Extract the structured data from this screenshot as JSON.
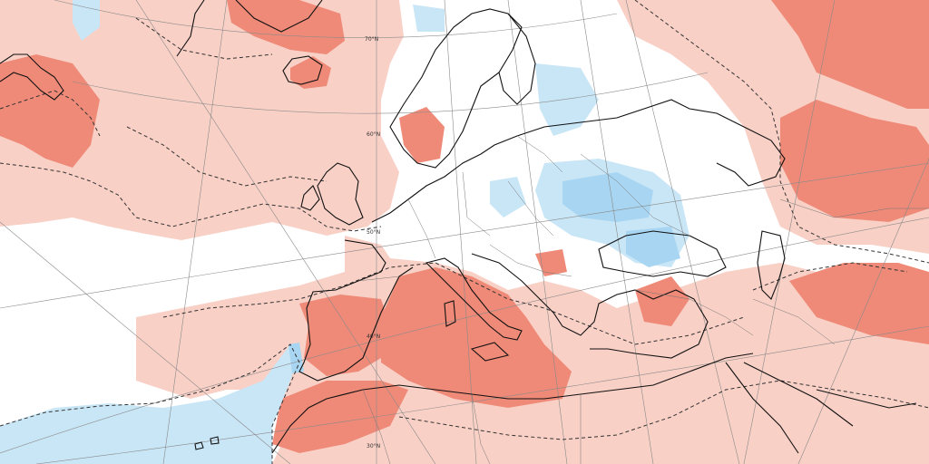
{
  "map": {
    "colors": {
      "warm_strong": "#ef8a78",
      "warm_light": "#f9d0c6",
      "cool_light": "#c9e6f7",
      "cool_strong": "#a8d6f2",
      "land_outline": "#111111",
      "border": "#777777",
      "contour_dashed": "#333333",
      "graticule": "#8a8a8a",
      "background": "#ffffff"
    },
    "latitude_labels": [
      "70°N",
      "60°N",
      "50°N",
      "40°N",
      "30°N"
    ]
  }
}
